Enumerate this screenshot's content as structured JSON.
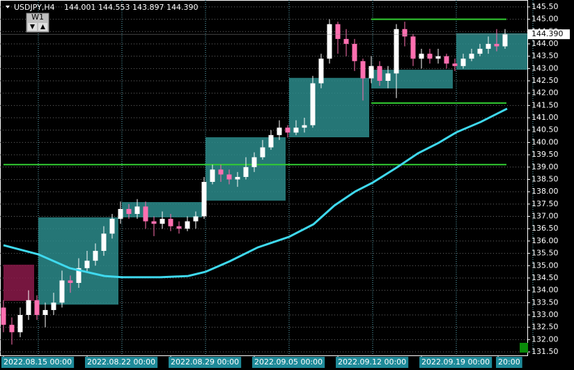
{
  "chart_data": {
    "type": "candlestick",
    "symbol": "USDJPY,H4",
    "info": "144.001 144.553 143.897 144.390",
    "button": "W1",
    "x": [
      0,
      3,
      6,
      9,
      12,
      15,
      18,
      21,
      24,
      27,
      30,
      33,
      36,
      39,
      42,
      45,
      48,
      51,
      54,
      57,
      60,
      63,
      66,
      69,
      72,
      75,
      78,
      81,
      84,
      87,
      90,
      93,
      96,
      99,
      102,
      105,
      108,
      111,
      114,
      117,
      120,
      123,
      126,
      129,
      132,
      135,
      138,
      141,
      144,
      147,
      150,
      153,
      156,
      159,
      162,
      165,
      168,
      171,
      174,
      177,
      180
    ],
    "open": [
      133.3,
      132.6,
      132.3,
      133.0,
      133.6,
      133.0,
      133.2,
      133.5,
      134.4,
      134.3,
      134.9,
      135.2,
      135.6,
      136.3,
      136.9,
      137.3,
      137.1,
      137.4,
      136.8,
      136.7,
      136.9,
      136.6,
      136.5,
      136.8,
      137.0,
      138.4,
      138.9,
      138.7,
      138.5,
      138.6,
      139.0,
      139.4,
      139.8,
      140.3,
      140.6,
      140.4,
      140.6,
      140.7,
      142.4,
      143.4,
      144.8,
      144.2,
      144.0,
      143.3,
      142.6,
      143.1,
      142.5,
      142.8,
      144.6,
      144.3,
      143.4,
      143.6,
      143.4,
      143.5,
      143.2,
      143.1,
      143.4,
      143.6,
      143.8,
      144.0,
      143.9
    ],
    "high": [
      133.6,
      132.9,
      133.3,
      134.0,
      133.8,
      133.5,
      133.9,
      134.8,
      134.6,
      135.3,
      135.6,
      135.9,
      136.6,
      137.1,
      137.6,
      137.5,
      137.7,
      137.6,
      137.0,
      137.2,
      137.1,
      136.8,
      137.0,
      137.2,
      138.6,
      139.1,
      139.1,
      138.9,
      138.8,
      139.4,
      139.6,
      140.1,
      140.5,
      140.9,
      140.7,
      140.9,
      141.0,
      142.7,
      143.6,
      145.0,
      144.9,
      144.6,
      144.2,
      143.4,
      143.5,
      143.3,
      143.1,
      144.8,
      144.9,
      144.4,
      143.8,
      143.8,
      143.8,
      143.6,
      143.4,
      143.6,
      143.8,
      144.0,
      144.3,
      144.6,
      144.6
    ],
    "low": [
      132.3,
      131.8,
      132.1,
      132.8,
      132.8,
      132.5,
      133.0,
      133.3,
      133.9,
      134.1,
      134.7,
      135.0,
      135.4,
      136.1,
      136.7,
      136.9,
      136.9,
      136.5,
      136.2,
      136.5,
      136.4,
      136.3,
      136.4,
      136.5,
      136.9,
      138.3,
      138.4,
      138.3,
      138.2,
      138.5,
      138.8,
      139.3,
      139.7,
      140.1,
      140.2,
      140.3,
      140.4,
      140.6,
      142.2,
      143.2,
      143.6,
      143.5,
      142.9,
      141.7,
      142.4,
      142.3,
      142.2,
      141.8,
      143.9,
      143.1,
      143.0,
      143.2,
      143.2,
      143.0,
      142.9,
      143.0,
      143.3,
      143.5,
      143.6,
      143.7,
      143.8
    ],
    "close": [
      132.6,
      132.3,
      133.0,
      133.6,
      133.0,
      133.2,
      133.5,
      134.4,
      134.3,
      134.9,
      135.2,
      135.6,
      136.3,
      136.9,
      137.3,
      137.1,
      137.4,
      136.8,
      136.7,
      136.9,
      136.6,
      136.5,
      136.8,
      137.0,
      138.4,
      138.9,
      138.7,
      138.5,
      138.6,
      139.0,
      139.4,
      139.8,
      140.3,
      140.6,
      140.4,
      140.6,
      140.7,
      142.4,
      143.4,
      144.8,
      144.2,
      144.0,
      143.3,
      142.6,
      143.1,
      142.5,
      142.8,
      144.6,
      144.3,
      143.4,
      143.6,
      143.4,
      143.5,
      143.2,
      143.1,
      143.4,
      143.6,
      143.8,
      144.0,
      143.9,
      144.4
    ],
    "bull_color": "#ffffff",
    "bear_color": "#ff6fb0",
    "ma": {
      "color": "#3fd9ee",
      "x": [
        0,
        12.5,
        23.75,
        36.25,
        42.5,
        56.25,
        66.25,
        72.5,
        81.25,
        91.25,
        102.5,
        111.25,
        118.75,
        126.25,
        132.5,
        141.25,
        148.75,
        156.25,
        162.5,
        171.25,
        180.75
      ],
      "values": [
        135.83,
        135.46,
        134.9,
        134.58,
        134.53,
        134.53,
        134.58,
        134.75,
        135.18,
        135.74,
        136.17,
        136.68,
        137.44,
        138.01,
        138.37,
        138.99,
        139.56,
        139.99,
        140.41,
        140.83,
        141.37
      ]
    },
    "zones": [
      {
        "x0": 0,
        "x1": 11,
        "top": 135.04,
        "bottom": 133.57,
        "color": "#8b1a4a"
      },
      {
        "x0": 12.5,
        "x1": 41.25,
        "top": 136.96,
        "bottom": 133.42,
        "color": "#2b8b8b"
      },
      {
        "x0": 42.5,
        "x1": 71.25,
        "top": 137.58,
        "bottom": 136.96,
        "color": "#2b8b8b"
      },
      {
        "x0": 72.5,
        "x1": 101.25,
        "top": 140.21,
        "bottom": 137.64,
        "color": "#2b8b8b"
      },
      {
        "x0": 102.5,
        "x1": 131.25,
        "top": 142.62,
        "bottom": 140.21,
        "color": "#2b8b8b"
      },
      {
        "x0": 132,
        "x1": 161.25,
        "top": 142.95,
        "bottom": 142.19,
        "color": "#2b8b8b"
      },
      {
        "x0": 162.5,
        "x1": 188,
        "top": 144.43,
        "bottom": 142.95,
        "color": "#2b8b8b"
      }
    ],
    "hlines": [
      {
        "value": 139.1,
        "x0": 0,
        "x1": 180.5
      },
      {
        "value": 145.0,
        "x0": 132,
        "x1": 180.5
      },
      {
        "value": 141.6,
        "x0": 132,
        "x1": 180.5
      }
    ],
    "hline_color": "#32cd32",
    "last_price": {
      "value": 144.39,
      "label": "144.390"
    },
    "xlim": [
      -1.25,
      188
    ],
    "xticks": [
      {
        "value": 0,
        "label": "2022.08.15 00:00"
      },
      {
        "value": 30,
        "label": "2022.08.22 00:00"
      },
      {
        "value": 60,
        "label": "2022.08.29 00:00"
      },
      {
        "value": 90,
        "label": "2022.09.05 00:00"
      },
      {
        "value": 120,
        "label": "2022.09.12 00:00"
      },
      {
        "value": 150,
        "label": "2022.09.19 00:00"
      },
      {
        "value": 177.5,
        "label": "20:00"
      }
    ],
    "ylim": [
      131.36,
      145.78
    ],
    "yticks": [
      {
        "value": 131.5,
        "label": "131.50"
      },
      {
        "value": 132,
        "label": "132.00"
      },
      {
        "value": 132.5,
        "label": "132.50"
      },
      {
        "value": 133,
        "label": "133.00"
      },
      {
        "value": 133.5,
        "label": "133.50"
      },
      {
        "value": 134,
        "label": "134.00"
      },
      {
        "value": 134.5,
        "label": "134.50"
      },
      {
        "value": 135,
        "label": "135.00"
      },
      {
        "value": 135.5,
        "label": "135.50"
      },
      {
        "value": 136,
        "label": "136.00"
      },
      {
        "value": 136.5,
        "label": "136.50"
      },
      {
        "value": 137,
        "label": "137.00"
      },
      {
        "value": 137.5,
        "label": "137.50"
      },
      {
        "value": 138,
        "label": "138.00"
      },
      {
        "value": 138.5,
        "label": "138.50"
      },
      {
        "value": 139,
        "label": "139.00"
      },
      {
        "value": 139.5,
        "label": "139.50"
      },
      {
        "value": 140,
        "label": "140.00"
      },
      {
        "value": 140.5,
        "label": "140.50"
      },
      {
        "value": 141,
        "label": "141.00"
      },
      {
        "value": 141.5,
        "label": "141.50"
      },
      {
        "value": 142,
        "label": "142.00"
      },
      {
        "value": 142.5,
        "label": "142.50"
      },
      {
        "value": 143,
        "label": "143.00"
      },
      {
        "value": 143.5,
        "label": "143.50"
      },
      {
        "value": 144,
        "label": "144.00"
      },
      {
        "value": 144.5,
        "label": "144.50"
      },
      {
        "value": 145,
        "label": "145.00"
      },
      {
        "value": 145.5,
        "label": "145.50"
      }
    ],
    "grid": true
  }
}
